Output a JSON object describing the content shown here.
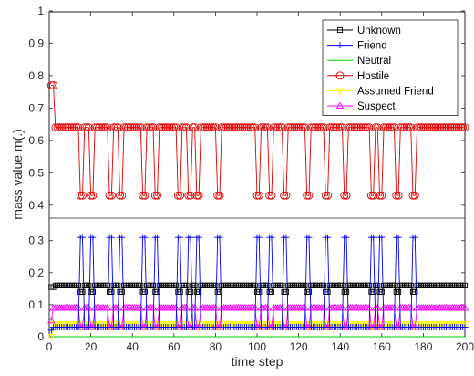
{
  "chart_data": {
    "type": "line",
    "xlabel": "time step",
    "ylabel": "mass value m(.)",
    "xlim": [
      0,
      200
    ],
    "ylim": [
      0,
      1
    ],
    "xticks": [
      "0",
      "20",
      "40",
      "60",
      "80",
      "100",
      "120",
      "140",
      "160",
      "180",
      "200"
    ],
    "yticks": [
      "0",
      "0.1",
      "0.2",
      "0.3",
      "0.4",
      "0.5",
      "0.6",
      "0.7",
      "0.8",
      "0.9",
      "1"
    ],
    "axis_break": "between 0.33 and 0.37",
    "legend_position": "top-right",
    "drop_steps": [
      15,
      20,
      29,
      34,
      45,
      51,
      62,
      67,
      71,
      81,
      100,
      106,
      113,
      124,
      133,
      142,
      155,
      159,
      167,
      175
    ],
    "series": [
      {
        "name": "Unknown",
        "color": "#000000",
        "marker": "square",
        "baseline": 0.16,
        "low": 0.14,
        "initial": 0.155,
        "first": 0.155
      },
      {
        "name": "Friend",
        "color": "#0000ff",
        "marker": "plus",
        "baseline": 0.03,
        "high": 0.31,
        "first": 0.02
      },
      {
        "name": "Neutral",
        "color": "#00cc00",
        "marker": "none",
        "baseline": 0.0,
        "first": 0.0
      },
      {
        "name": "Hostile",
        "color": "#e00000",
        "marker": "circle",
        "baseline": 0.64,
        "low": 0.43,
        "initial": 0.77,
        "first": 0.77
      },
      {
        "name": "Assumed Friend",
        "color": "#ffff00",
        "marker": "triangle-down",
        "baseline": 0.04,
        "low": 0.03,
        "first": 0.0
      },
      {
        "name": "Suspect",
        "color": "#ff00ff",
        "marker": "triangle-up",
        "baseline": 0.09,
        "low": 0.03,
        "first": 0.05
      }
    ]
  }
}
